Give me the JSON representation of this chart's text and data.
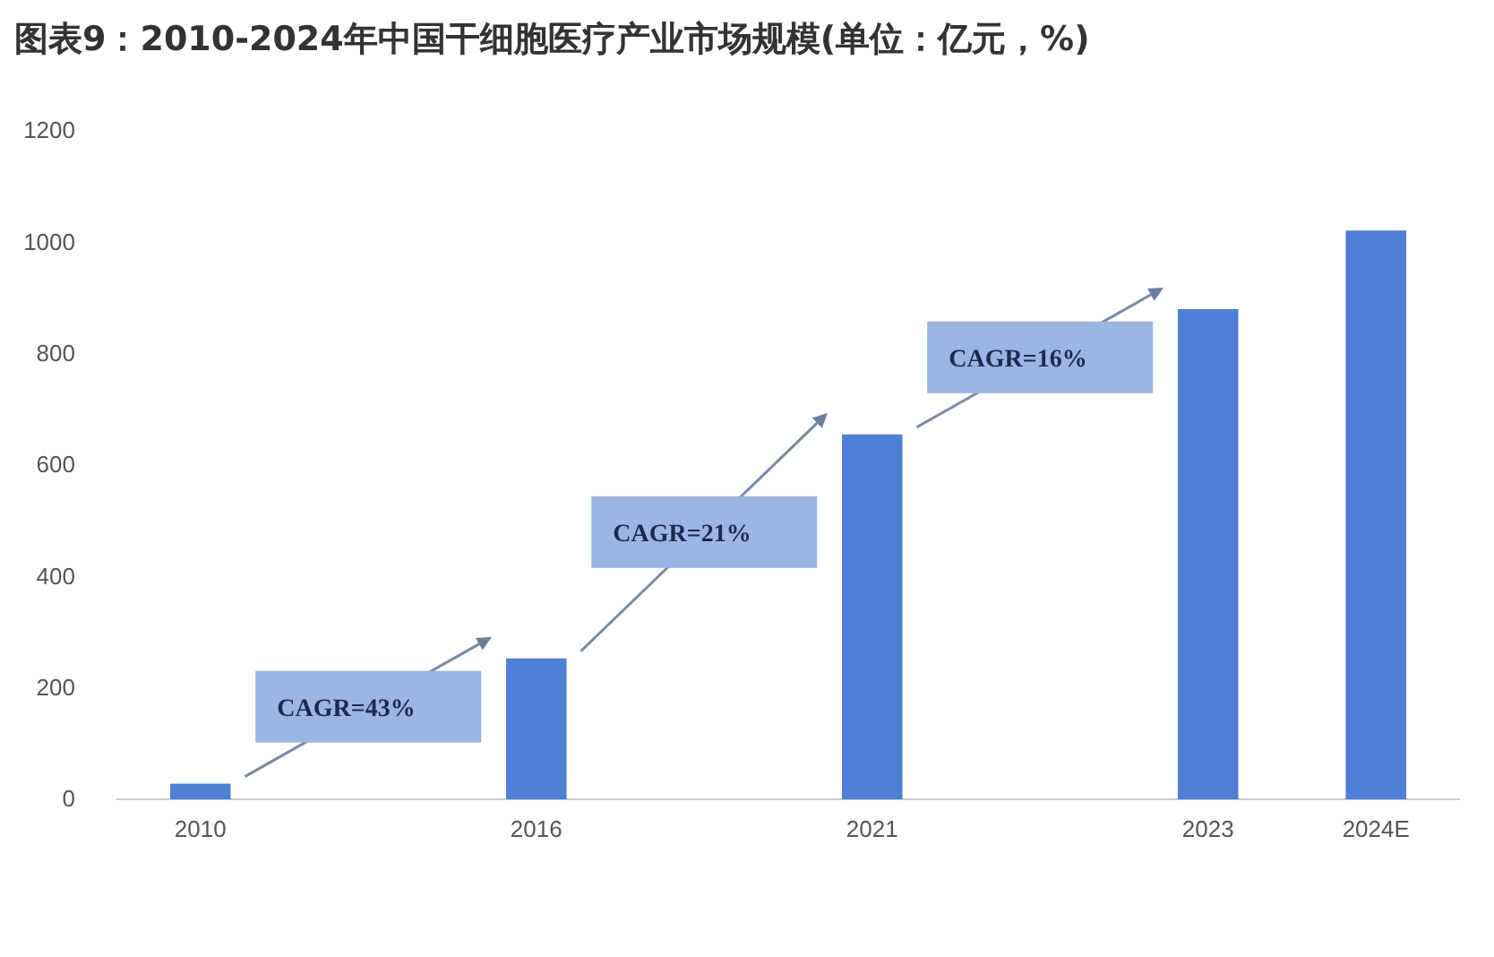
{
  "chart_data": {
    "type": "bar",
    "title": "图表9：2010-2024年中国干细胞医疗产业市场规模(单位：亿元，%)",
    "categories": [
      "2010",
      null,
      "2016",
      null,
      "2021",
      null,
      "2023",
      "2024E"
    ],
    "values": [
      28,
      null,
      253,
      null,
      655,
      null,
      880,
      1021
    ],
    "color": "#4f7fd8",
    "ylim": [
      0,
      1200
    ],
    "yticks": [
      0,
      200,
      400,
      600,
      800,
      1000,
      1200
    ],
    "grid": false,
    "annotations": [
      "CAGR=43%",
      "CAGR=21%",
      "CAGR=16%"
    ]
  }
}
